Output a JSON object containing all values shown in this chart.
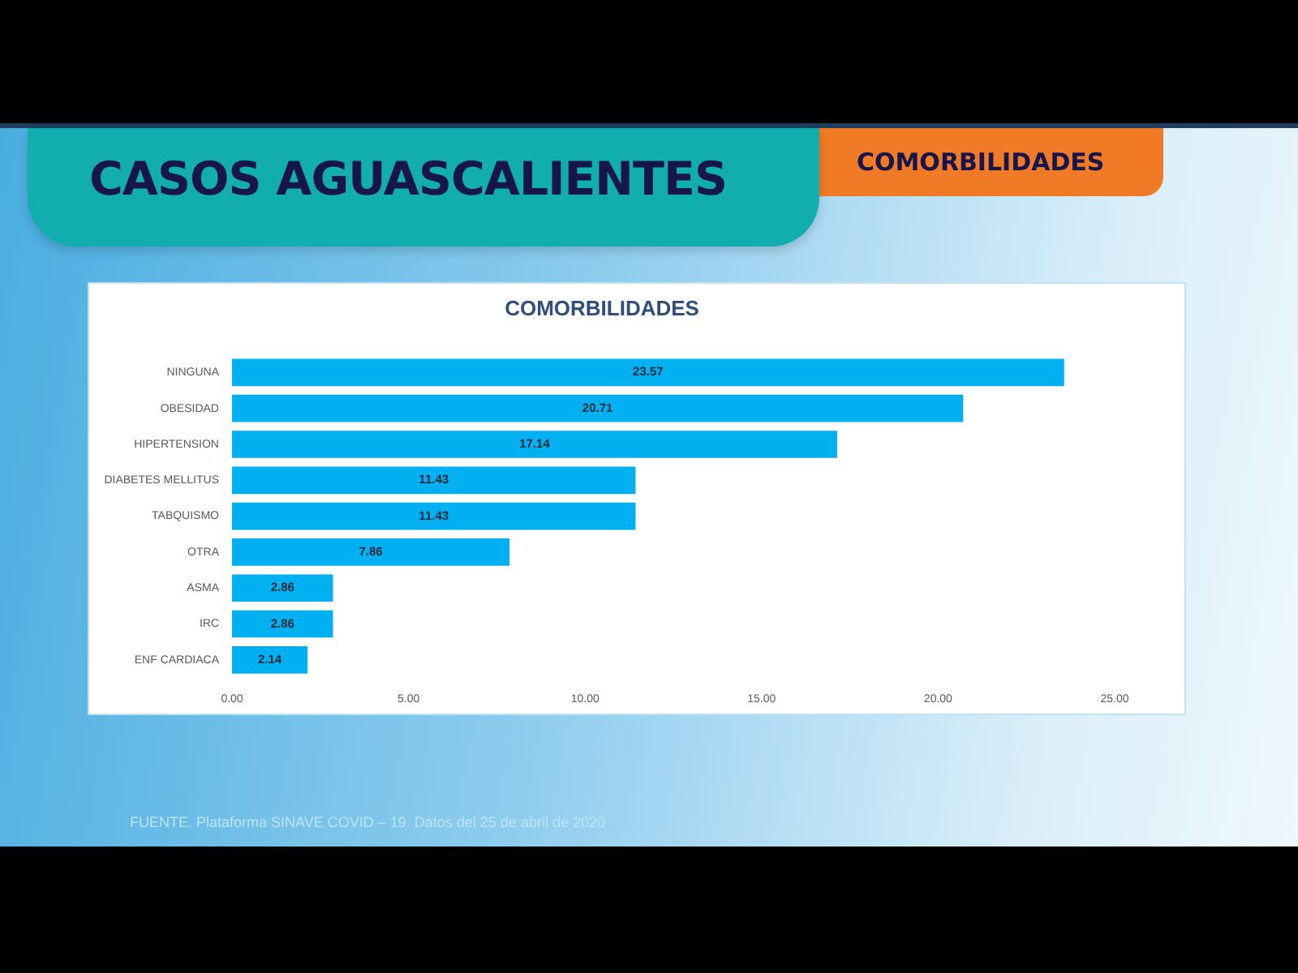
{
  "chart_data": {
    "type": "bar",
    "orientation": "horizontal",
    "title": "COMORBILIDADES",
    "categories": [
      "NINGUNA",
      "OBESIDAD",
      "HIPERTENSION",
      "DIABETES MELLITUS",
      "TABQUISMO",
      "OTRA",
      "ASMA",
      "IRC",
      "ENF CARDIACA"
    ],
    "values": [
      23.57,
      20.71,
      17.14,
      11.43,
      11.43,
      7.86,
      2.86,
      2.86,
      2.14
    ],
    "color": "#00b0f0",
    "xlim": [
      0,
      25
    ],
    "xticks": [
      {
        "value": 0,
        "label": "0.00"
      },
      {
        "value": 5,
        "label": "5.00"
      },
      {
        "value": 10,
        "label": "10.00"
      },
      {
        "value": 15,
        "label": "15.00"
      },
      {
        "value": 20,
        "label": "20.00"
      },
      {
        "value": 25,
        "label": "25.00"
      }
    ],
    "data_labels": true,
    "grid": false,
    "legend": false,
    "annotations": [
      "CASOS AGUASCALIENTES",
      "COMORBILIDADES",
      "FUENTE. Plataforma SINAVE COVID – 19. Datos del 25 de abril de 2020"
    ]
  }
}
